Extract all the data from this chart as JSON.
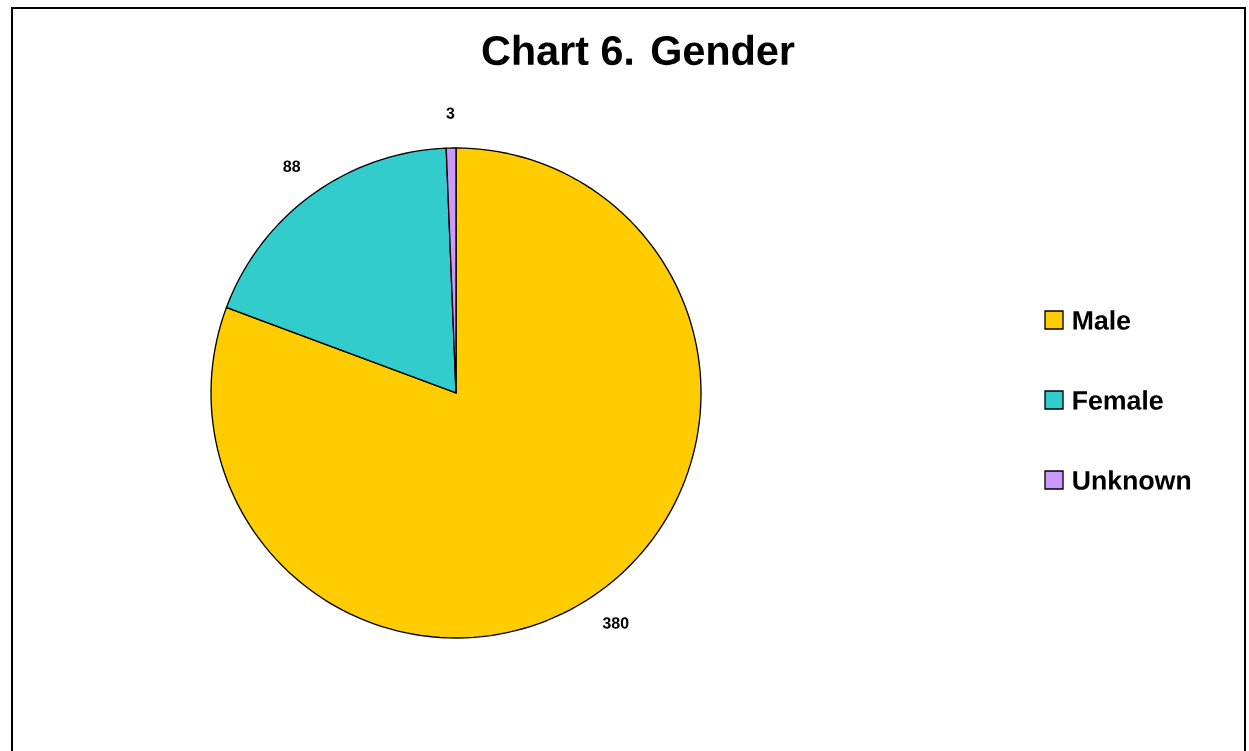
{
  "chart_data": {
    "type": "pie",
    "title": "Chart 6. Gender",
    "categories": [
      "Male",
      "Female",
      "Unknown"
    ],
    "values": [
      380,
      88,
      3
    ],
    "colors": [
      "#ffcc00",
      "#33cccc",
      "#cc99ff"
    ],
    "data_labels": true,
    "legend": "right"
  }
}
